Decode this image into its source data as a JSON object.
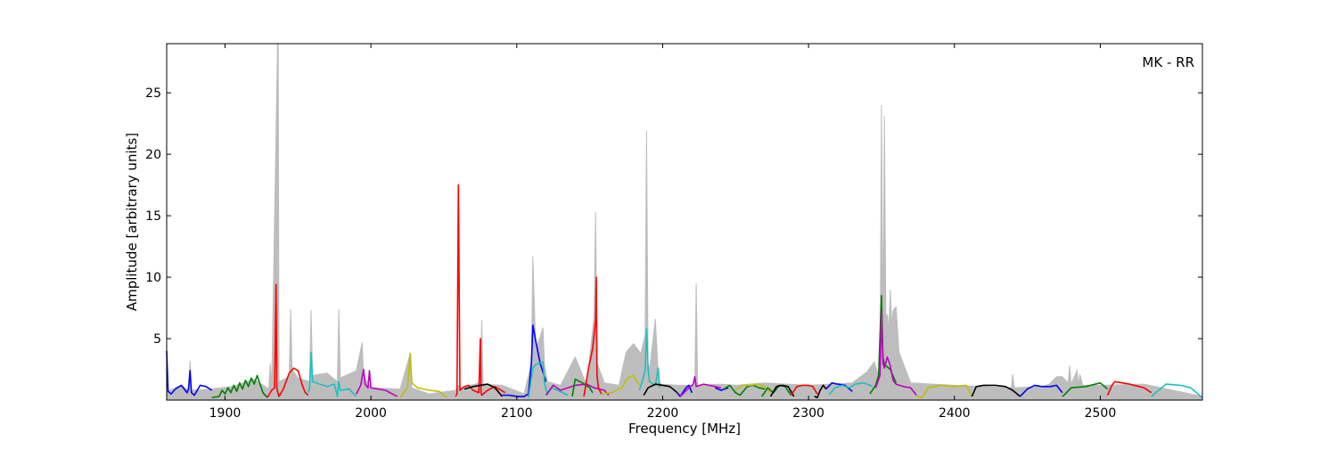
{
  "chart_data": {
    "type": "line",
    "title": "",
    "annotation": "MK - RR",
    "xlabel": "Frequency [MHz]",
    "ylabel": "Amplitude [arbitrary units]",
    "xlim": [
      1860,
      2570
    ],
    "ylim": [
      0,
      29
    ],
    "xticks": [
      1900,
      2000,
      2100,
      2200,
      2300,
      2400,
      2500
    ],
    "yticks": [
      5,
      10,
      15,
      20,
      25
    ],
    "grid": false,
    "legend": "none",
    "colors": {
      "background": "#bdbdbd",
      "blue": "#0000ff",
      "green": "#008000",
      "red": "#ff0000",
      "cyan": "#1fbfbf",
      "magenta": "#bf00bf",
      "olive": "#bfbf00",
      "black": "#000000"
    },
    "background_series": {
      "name": "",
      "color": "#bdbdbd",
      "x": [
        1860,
        1870,
        1875,
        1876,
        1877,
        1890,
        1905,
        1920,
        1930,
        1931,
        1932,
        1936,
        1936.5,
        1937,
        1944,
        1945,
        1946,
        1950,
        1958,
        1959,
        1960,
        1970,
        1977,
        1978,
        1979,
        1990,
        1994,
        1995,
        2000,
        2020,
        2027,
        2028,
        2040,
        2058,
        2060,
        2061,
        2075,
        2076,
        2077,
        2090,
        2105,
        2110,
        2111,
        2113,
        2118,
        2119,
        2121,
        2130,
        2140,
        2148,
        2153,
        2154,
        2155,
        2160,
        2170,
        2175,
        2180,
        2185,
        2188,
        2189,
        2190,
        2191,
        2195,
        2197,
        2198,
        2199,
        2210,
        2222,
        2223,
        2224,
        2240,
        2250,
        2270,
        2300,
        2330,
        2340,
        2345,
        2349,
        2350,
        2351,
        2352,
        2353,
        2354,
        2355,
        2356,
        2357,
        2358,
        2360,
        2362,
        2370,
        2400,
        2439,
        2440,
        2441,
        2460,
        2465,
        2470,
        2474,
        2478,
        2479,
        2480,
        2484,
        2485,
        2486,
        2488,
        2500,
        2530,
        2570
      ],
      "y": [
        0.7,
        1.2,
        0.8,
        3.2,
        0.8,
        0.9,
        1.1,
        1.7,
        0.9,
        3.0,
        1.0,
        29.0,
        29.0,
        1.5,
        1.9,
        7.4,
        2.5,
        1.8,
        1.5,
        7.3,
        2.0,
        2.2,
        1.5,
        7.4,
        1.8,
        2.4,
        4.7,
        2.0,
        1.0,
        0.9,
        3.8,
        1.0,
        0.5,
        0.8,
        1.2,
        1.0,
        1.4,
        6.5,
        1.3,
        1.2,
        0.5,
        3.0,
        11.7,
        4.0,
        5.9,
        2.8,
        1.5,
        1.2,
        3.5,
        1.2,
        6.8,
        15.3,
        3.0,
        1.4,
        1.2,
        3.9,
        4.6,
        3.8,
        5.3,
        21.9,
        3.0,
        2.5,
        6.6,
        2.0,
        1.4,
        1.3,
        1.2,
        1.2,
        9.5,
        1.2,
        1.3,
        1.2,
        1.4,
        1.2,
        1.4,
        2.3,
        3.1,
        1.6,
        24.0,
        5.0,
        23.1,
        6.4,
        7.0,
        5.5,
        9.0,
        6.1,
        7.3,
        7.6,
        3.9,
        1.4,
        1.2,
        1.0,
        2.1,
        1.0,
        1.1,
        1.3,
        1.9,
        1.9,
        1.4,
        2.8,
        1.3,
        2.4,
        1.2,
        2.1,
        1.2,
        1.2,
        1.3,
        0.3
      ]
    },
    "series": [
      {
        "name": "",
        "color": "#0000ff",
        "x": [
          1860,
          1861,
          1863,
          1866,
          1870,
          1874,
          1875,
          1876,
          1877,
          1879,
          1883,
          1887,
          1891
        ],
        "y": [
          4.0,
          0.7,
          0.5,
          0.9,
          1.2,
          0.6,
          0.9,
          2.4,
          0.6,
          0.4,
          1.2,
          1.1,
          0.8
        ]
      },
      {
        "name": "",
        "color": "#008000",
        "x": [
          1891,
          1896,
          1898,
          1900,
          1902,
          1904,
          1906,
          1908,
          1910,
          1912,
          1914,
          1916,
          1918,
          1920,
          1922,
          1926,
          1929
        ],
        "y": [
          0.2,
          0.3,
          0.8,
          0.5,
          1.0,
          0.6,
          1.2,
          0.7,
          1.4,
          0.9,
          1.6,
          1.1,
          1.8,
          1.3,
          2.0,
          0.6,
          0.2
        ]
      },
      {
        "name": "",
        "color": "#ff0000",
        "x": [
          1929,
          1932,
          1934,
          1935,
          1935.5,
          1936,
          1937,
          1940,
          1944,
          1947,
          1950,
          1953,
          1955,
          1957
        ],
        "y": [
          0.2,
          0.8,
          1.0,
          9.4,
          1.0,
          0.7,
          0.3,
          0.9,
          2.2,
          2.6,
          2.4,
          1.2,
          0.6,
          0.4
        ]
      },
      {
        "name": "",
        "color": "#1fbfbf",
        "x": [
          1957,
          1958,
          1959,
          1960,
          1965,
          1970,
          1975,
          1977,
          1978,
          1979,
          1985,
          1990
        ],
        "y": [
          0.6,
          1.0,
          3.9,
          1.5,
          1.3,
          1.1,
          1.3,
          0.3,
          1.5,
          0.8,
          0.9,
          0.3
        ]
      },
      {
        "name": "",
        "color": "#bf00bf",
        "x": [
          1990,
          1993,
          1995,
          1996,
          1998,
          1999,
          2000,
          2005,
          2010,
          2018
        ],
        "y": [
          0.5,
          1.2,
          2.5,
          1.3,
          1.0,
          2.4,
          1.0,
          0.9,
          0.8,
          0.3
        ]
      },
      {
        "name": "",
        "color": "#bfbf00",
        "x": [
          2020,
          2025,
          2027,
          2028,
          2032,
          2040,
          2047,
          2052
        ],
        "y": [
          0.2,
          1.0,
          3.8,
          1.4,
          1.0,
          0.8,
          0.7,
          0.2
        ]
      },
      {
        "name": "",
        "color": "#ff0000",
        "x": [
          2058,
          2059,
          2060,
          2061,
          2064,
          2067,
          2070,
          2074,
          2075,
          2075.5,
          2076,
          2080,
          2085,
          2092
        ],
        "y": [
          0.3,
          0.5,
          17.5,
          0.8,
          1.1,
          1.2,
          0.8,
          0.6,
          5.0,
          0.6,
          0.4,
          0.8,
          1.1,
          0.6
        ]
      },
      {
        "name": "",
        "color": "#000000",
        "x": [
          2064,
          2070,
          2080,
          2085,
          2090
        ],
        "y": [
          0.9,
          1.1,
          1.3,
          1.0,
          0.3
        ]
      },
      {
        "name": "",
        "color": "#0000ff",
        "x": [
          2090,
          2095,
          2100,
          2105,
          2108,
          2110,
          2111,
          2113,
          2116,
          2120
        ],
        "y": [
          0.4,
          0.4,
          0.3,
          0.3,
          0.5,
          3.0,
          6.1,
          4.8,
          3.0,
          1.5
        ]
      },
      {
        "name": "",
        "color": "#1fbfbf",
        "x": [
          2108,
          2111,
          2113,
          2118,
          2119,
          2121,
          2124,
          2128,
          2135
        ],
        "y": [
          0.2,
          2.6,
          2.9,
          3.1,
          1.3,
          0.5,
          1.0,
          0.8,
          0.4
        ]
      },
      {
        "name": "",
        "color": "#bf00bf",
        "x": [
          2120,
          2125,
          2130,
          2135,
          2140,
          2148,
          2153,
          2160,
          2163
        ],
        "y": [
          0.4,
          1.2,
          0.8,
          1.0,
          1.2,
          1.3,
          1.0,
          0.8,
          0.4
        ]
      },
      {
        "name": "",
        "color": "#008000",
        "x": [
          2138,
          2140,
          2145,
          2150,
          2152
        ],
        "y": [
          0.3,
          1.7,
          1.4,
          1.0,
          0.6
        ]
      },
      {
        "name": "",
        "color": "#ff0000",
        "x": [
          2146,
          2149,
          2152,
          2154,
          2154.5,
          2155,
          2156,
          2158
        ],
        "y": [
          0.3,
          2.5,
          4.2,
          6.5,
          10.0,
          2.0,
          1.0,
          0.5
        ]
      },
      {
        "name": "",
        "color": "#bfbf00",
        "x": [
          2158,
          2165,
          2172,
          2176,
          2180,
          2184
        ],
        "y": [
          0.5,
          0.6,
          1.0,
          1.8,
          2.0,
          1.2
        ]
      },
      {
        "name": "",
        "color": "#1fbfbf",
        "x": [
          2184,
          2186,
          2188,
          2189,
          2190,
          2191,
          2195,
          2197,
          2198
        ],
        "y": [
          0.8,
          1.5,
          2.4,
          5.8,
          2.5,
          1.5,
          1.2,
          2.6,
          1.0
        ]
      },
      {
        "name": "",
        "color": "#000000",
        "x": [
          2187,
          2190,
          2195,
          2200,
          2205,
          2210
        ],
        "y": [
          0.4,
          1.0,
          1.3,
          1.2,
          1.1,
          0.6
        ]
      },
      {
        "name": "",
        "color": "#0000ff",
        "x": [
          2210,
          2212,
          2216,
          2218,
          2220
        ],
        "y": [
          0.6,
          0.3,
          1.0,
          1.2,
          0.6
        ]
      },
      {
        "name": "",
        "color": "#bf00bf",
        "x": [
          2212,
          2218,
          2221,
          2222,
          2223,
          2228,
          2232,
          2240
        ],
        "y": [
          0.3,
          1.0,
          1.3,
          1.9,
          1.1,
          1.3,
          1.2,
          1.0
        ]
      },
      {
        "name": "",
        "color": "#0000ff",
        "x": [
          2236,
          2240,
          2245
        ],
        "y": [
          1.0,
          0.8,
          1.0
        ]
      },
      {
        "name": "",
        "color": "#008000",
        "x": [
          2242,
          2246,
          2250,
          2253,
          2258,
          2262,
          2266,
          2270
        ],
        "y": [
          0.9,
          1.2,
          0.6,
          0.4,
          1.1,
          1.2,
          1.0,
          0.9
        ]
      },
      {
        "name": "",
        "color": "#bfbf00",
        "x": [
          2250,
          2255,
          2260,
          2265,
          2270,
          2274
        ],
        "y": [
          0.8,
          1.2,
          1.2,
          1.3,
          1.1,
          0.6
        ]
      },
      {
        "name": "",
        "color": "#008000",
        "x": [
          2268,
          2272,
          2276,
          2280,
          2284,
          2288
        ],
        "y": [
          0.3,
          1.0,
          0.6,
          1.2,
          1.1,
          0.4
        ]
      },
      {
        "name": "",
        "color": "#000000",
        "x": [
          2274,
          2278,
          2282,
          2286,
          2290
        ],
        "y": [
          0.3,
          1.1,
          1.2,
          1.1,
          0.3
        ]
      },
      {
        "name": "",
        "color": "#ff0000",
        "x": [
          2288,
          2292,
          2296,
          2300,
          2303,
          2306
        ],
        "y": [
          0.4,
          1.1,
          1.2,
          1.2,
          1.1,
          0.5
        ]
      },
      {
        "name": "",
        "color": "#000000",
        "x": [
          2304,
          2306,
          2308,
          2310,
          2312
        ],
        "y": [
          0.3,
          0.2,
          0.8,
          1.2,
          0.9
        ]
      },
      {
        "name": "",
        "color": "#0000ff",
        "x": [
          2312,
          2316,
          2320,
          2325,
          2330
        ],
        "y": [
          0.9,
          1.4,
          1.3,
          1.2,
          0.7
        ]
      },
      {
        "name": "",
        "color": "#1fbfbf",
        "x": [
          2314,
          2318,
          2323,
          2328,
          2332,
          2338,
          2344
        ],
        "y": [
          0.4,
          1.0,
          1.2,
          1.0,
          1.3,
          1.4,
          1.1
        ]
      },
      {
        "name": "",
        "color": "#008000",
        "x": [
          2342,
          2346,
          2348,
          2350,
          2351,
          2352,
          2356,
          2360
        ],
        "y": [
          0.5,
          1.2,
          2.0,
          8.5,
          3.5,
          2.9,
          2.5,
          1.4
        ]
      },
      {
        "name": "",
        "color": "#bf00bf",
        "x": [
          2346,
          2349,
          2350,
          2351,
          2352,
          2354,
          2356,
          2358,
          2360,
          2365,
          2370,
          2374
        ],
        "y": [
          1.0,
          2.0,
          7.2,
          3.0,
          2.6,
          3.5,
          2.8,
          1.6,
          1.3,
          1.1,
          1.0,
          0.4
        ]
      },
      {
        "name": "",
        "color": "#bfbf00",
        "x": [
          2374,
          2378,
          2382,
          2386,
          2390,
          2400,
          2408,
          2410,
          2412
        ],
        "y": [
          0.3,
          0.2,
          1.0,
          1.1,
          1.2,
          1.1,
          1.2,
          0.8,
          0.3
        ]
      },
      {
        "name": "",
        "color": "#000000",
        "x": [
          2412,
          2415,
          2420,
          2428,
          2435,
          2440,
          2445
        ],
        "y": [
          0.3,
          1.1,
          1.2,
          1.2,
          1.1,
          0.8,
          0.3
        ]
      },
      {
        "name": "",
        "color": "#0000ff",
        "x": [
          2445,
          2450,
          2455,
          2460,
          2466,
          2470,
          2474
        ],
        "y": [
          0.3,
          0.9,
          1.2,
          1.1,
          1.1,
          1.2,
          0.6
        ]
      },
      {
        "name": "",
        "color": "#008000",
        "x": [
          2474,
          2476,
          2480,
          2490,
          2500,
          2505
        ],
        "y": [
          0.3,
          0.5,
          1.0,
          1.1,
          1.4,
          0.9
        ]
      },
      {
        "name": "",
        "color": "#ff0000",
        "x": [
          2505,
          2508,
          2510,
          2515,
          2520,
          2530,
          2535
        ],
        "y": [
          0.4,
          1.2,
          1.5,
          1.4,
          1.3,
          1.0,
          0.6
        ]
      },
      {
        "name": "",
        "color": "#1fbfbf",
        "x": [
          2535,
          2540,
          2545,
          2555,
          2562,
          2570
        ],
        "y": [
          0.3,
          0.8,
          1.3,
          1.2,
          1.0,
          0.2
        ]
      }
    ]
  }
}
